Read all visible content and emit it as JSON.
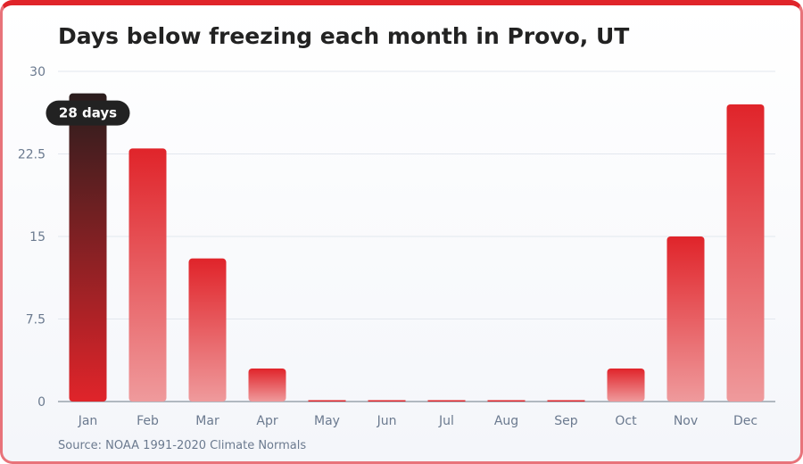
{
  "chart_data": {
    "type": "bar",
    "title": "Days below freezing each month in Provo, UT",
    "source": "Source: NOAA 1991-2020 Climate Normals",
    "categories": [
      "Jan",
      "Feb",
      "Mar",
      "Apr",
      "May",
      "Jun",
      "Jul",
      "Aug",
      "Sep",
      "Oct",
      "Nov",
      "Dec"
    ],
    "values": [
      28,
      23,
      13,
      3,
      0,
      0,
      0,
      0,
      0,
      3,
      15,
      27
    ],
    "ylim": [
      0,
      30
    ],
    "yticks": [
      "0",
      "7.5",
      "15",
      "22.5",
      "30"
    ],
    "ytick_values": [
      0,
      7.5,
      15,
      22.5,
      30
    ],
    "grid": true,
    "highlighted_category": "Jan",
    "tooltip": "28 days",
    "colors": {
      "bar_top": "#e0242a",
      "bar_bottom": "#ef9a9c",
      "highlight_top": "#2a1d1d",
      "highlight_bottom": "#e0242a",
      "tooltip_bg": "#222222",
      "grid": "#e3e7ee",
      "axis": "#9aa3ad"
    }
  }
}
